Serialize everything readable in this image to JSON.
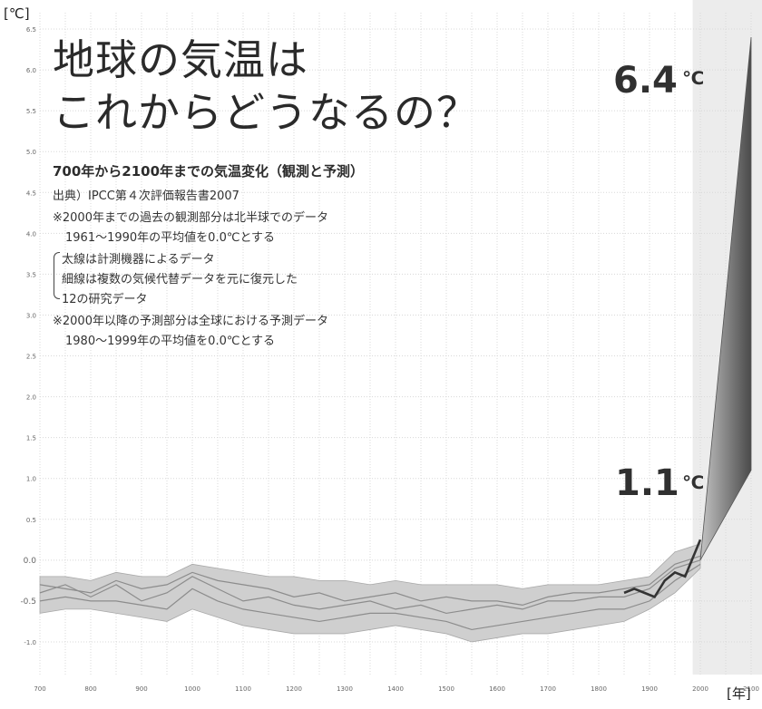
{
  "title_line1": "地球の気温は",
  "title_line2": "これからどうなるの？",
  "subtitle": "700年から2100年までの気温変化（観測と予測）",
  "notes": [
    "出典）IPCC第４次評価報告書2007",
    "※2000年までの過去の観測部分は北半球でのデータ",
    "1961～1990年の平均値を0.0℃とする",
    "太線は計測機器によるデータ",
    "細線は複数の気候代替データを元に復元した",
    "12の研究データ",
    "※2000年以降の予測部分は全球における予測データ",
    "1980～1999年の平均値を0.0℃とする"
  ],
  "y_unit": "[℃]",
  "x_unit": "[年]",
  "annotations": {
    "high": "6.4",
    "low": "1.1",
    "unit": "℃"
  },
  "colors": {
    "band": "#cfcfcf",
    "proxy": "#8c8c8c",
    "instrumental": "#333333",
    "grid": "#d8d8d8",
    "future_shade": "#ececec",
    "fan_light": "#c4c4c4",
    "fan_dark": "#4a4a4a"
  },
  "chart_data": {
    "type": "line",
    "xlim": [
      700,
      2100
    ],
    "ylim": [
      -1.4,
      6.7
    ],
    "x_ticks": [
      700,
      800,
      900,
      1000,
      1100,
      1200,
      1300,
      1400,
      1500,
      1600,
      1700,
      1800,
      1900,
      2000,
      2100
    ],
    "y_ticks": [
      -1.0,
      -0.5,
      0.0,
      0.5,
      1.0,
      1.5,
      2.0,
      2.5,
      3.0,
      3.5,
      4.0,
      4.5,
      5.0,
      5.5,
      6.0,
      6.5
    ],
    "y_tick_labels": [
      "-1.0",
      "-0.5",
      "0.0",
      "0.5",
      "1.0",
      "1.5",
      "2.0",
      "2.5",
      "3.0",
      "3.5",
      "4.0",
      "4.5",
      "5.0",
      "5.5",
      "6.0",
      "6.5"
    ],
    "grid": true,
    "proxy_band": {
      "x": [
        700,
        750,
        800,
        850,
        900,
        950,
        1000,
        1050,
        1100,
        1150,
        1200,
        1250,
        1300,
        1350,
        1400,
        1450,
        1500,
        1550,
        1600,
        1650,
        1700,
        1750,
        1800,
        1850,
        1900,
        1950,
        2000
      ],
      "upper": [
        -0.2,
        -0.2,
        -0.25,
        -0.15,
        -0.2,
        -0.2,
        -0.05,
        -0.1,
        -0.15,
        -0.2,
        -0.2,
        -0.25,
        -0.25,
        -0.3,
        -0.25,
        -0.3,
        -0.3,
        -0.3,
        -0.3,
        -0.35,
        -0.3,
        -0.3,
        -0.3,
        -0.25,
        -0.2,
        0.1,
        0.2
      ],
      "lower": [
        -0.65,
        -0.6,
        -0.6,
        -0.65,
        -0.7,
        -0.75,
        -0.6,
        -0.7,
        -0.8,
        -0.85,
        -0.9,
        -0.9,
        -0.9,
        -0.85,
        -0.8,
        -0.85,
        -0.9,
        -1.0,
        -0.95,
        -0.9,
        -0.9,
        -0.85,
        -0.8,
        -0.75,
        -0.6,
        -0.4,
        -0.1
      ]
    },
    "proxy_series": [
      {
        "values": [
          -0.4,
          -0.3,
          -0.45,
          -0.3,
          -0.5,
          -0.4,
          -0.2,
          -0.35,
          -0.5,
          -0.45,
          -0.55,
          -0.6,
          -0.55,
          -0.5,
          -0.6,
          -0.55,
          -0.65,
          -0.6,
          -0.55,
          -0.6,
          -0.5,
          -0.5,
          -0.45,
          -0.45,
          -0.35,
          -0.1,
          0.0
        ]
      },
      {
        "values": [
          -0.3,
          -0.35,
          -0.4,
          -0.25,
          -0.35,
          -0.3,
          -0.15,
          -0.25,
          -0.3,
          -0.35,
          -0.45,
          -0.4,
          -0.5,
          -0.45,
          -0.4,
          -0.5,
          -0.45,
          -0.5,
          -0.5,
          -0.55,
          -0.45,
          -0.4,
          -0.4,
          -0.35,
          -0.3,
          -0.05,
          0.05
        ]
      },
      {
        "values": [
          -0.5,
          -0.45,
          -0.5,
          -0.5,
          -0.55,
          -0.6,
          -0.35,
          -0.5,
          -0.6,
          -0.65,
          -0.7,
          -0.75,
          -0.7,
          -0.65,
          -0.65,
          -0.7,
          -0.75,
          -0.85,
          -0.8,
          -0.75,
          -0.7,
          -0.65,
          -0.6,
          -0.6,
          -0.5,
          -0.25,
          -0.05
        ]
      }
    ],
    "instrumental": {
      "x": [
        1850,
        1870,
        1890,
        1910,
        1930,
        1950,
        1970,
        1990,
        2000
      ],
      "y": [
        -0.4,
        -0.35,
        -0.4,
        -0.45,
        -0.25,
        -0.15,
        -0.2,
        0.1,
        0.25
      ]
    },
    "projection": {
      "x_start": 2000,
      "x_end": 2100,
      "start_value": 0.0,
      "low": 1.1,
      "high": 6.4
    }
  }
}
